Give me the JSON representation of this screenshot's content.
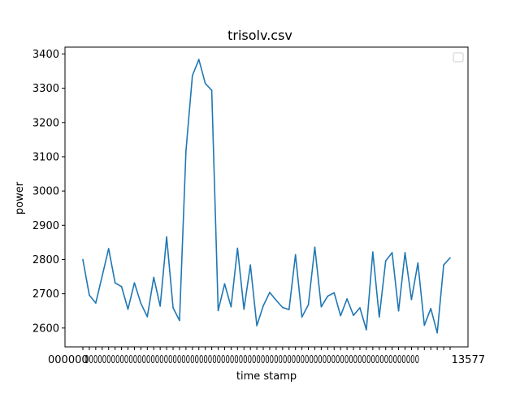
{
  "chart_data": {
    "type": "line",
    "title": "trisolv.csv",
    "xlabel": "time stamp",
    "ylabel": "power",
    "ylim": [
      2545,
      3420
    ],
    "yticks": [
      2600,
      2700,
      2800,
      2900,
      3000,
      3100,
      3200,
      3300,
      3400
    ],
    "ytick_labels": [
      "2600",
      "2700",
      "2800",
      "2900",
      "3000",
      "3100",
      "3200",
      "3300",
      "3400"
    ],
    "x_tick_labels_visible": {
      "first": "000000",
      "last": "13577"
    },
    "legend": {
      "visible": true,
      "placement": "top-right",
      "entries": []
    },
    "grid": false,
    "series": [
      {
        "color": "#1f77b4",
        "values": [
          2800,
          2696,
          2673,
          2752,
          2832,
          2732,
          2721,
          2655,
          2732,
          2672,
          2633,
          2748,
          2664,
          2866,
          2659,
          2622,
          3117,
          3337,
          3384,
          3314,
          3294,
          2651,
          2729,
          2662,
          2833,
          2655,
          2784,
          2607,
          2665,
          2704,
          2681,
          2660,
          2654,
          2814,
          2632,
          2668,
          2836,
          2662,
          2693,
          2703,
          2636,
          2685,
          2637,
          2659,
          2595,
          2822,
          2632,
          2796,
          2820,
          2650,
          2820,
          2683,
          2790,
          2608,
          2657,
          2586,
          2784,
          2805
        ]
      }
    ]
  }
}
